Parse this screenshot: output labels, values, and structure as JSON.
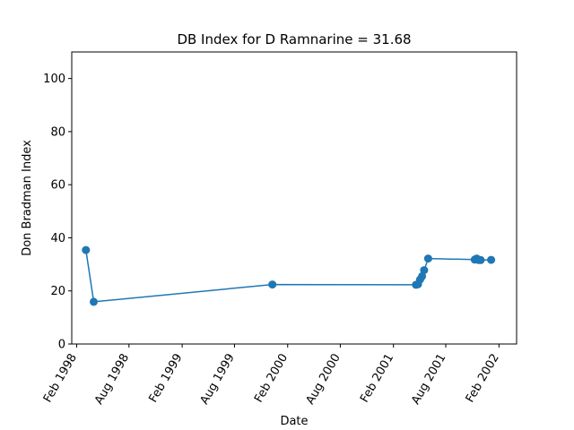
{
  "chart_data": {
    "type": "line",
    "title": "DB Index for D Ramnarine = 31.68",
    "xlabel": "Date",
    "ylabel": "Don Bradman Index",
    "ylim": [
      0,
      110
    ],
    "xlim": [
      "1998-01-15",
      "2002-04-03"
    ],
    "yticks": [
      0,
      20,
      40,
      60,
      80,
      100
    ],
    "xticks": [
      {
        "date": "1998-02-01",
        "label": "Feb 1998"
      },
      {
        "date": "1998-08-01",
        "label": "Aug 1998"
      },
      {
        "date": "1999-02-01",
        "label": "Feb 1999"
      },
      {
        "date": "1999-08-01",
        "label": "Aug 1999"
      },
      {
        "date": "2000-02-01",
        "label": "Feb 2000"
      },
      {
        "date": "2000-08-01",
        "label": "Aug 2000"
      },
      {
        "date": "2001-02-01",
        "label": "Feb 2001"
      },
      {
        "date": "2001-08-01",
        "label": "Aug 2001"
      },
      {
        "date": "2002-02-01",
        "label": "Feb 2002"
      }
    ],
    "grid": false,
    "marker": "circle",
    "color": "#1f77b4",
    "series": [
      {
        "x": [
          "1998-03-05",
          "1998-04-01",
          "1999-12-10",
          "2001-04-20",
          "2001-04-27",
          "2001-05-04",
          "2001-05-11",
          "2001-05-18",
          "2001-06-01",
          "2001-11-09",
          "2001-11-16",
          "2001-11-23",
          "2001-11-30",
          "2002-01-05"
        ],
        "y": [
          35.4,
          15.9,
          22.4,
          22.3,
          22.5,
          24.3,
          25.5,
          27.8,
          32.2,
          31.8,
          32.2,
          31.6,
          31.6,
          31.68
        ]
      }
    ]
  }
}
